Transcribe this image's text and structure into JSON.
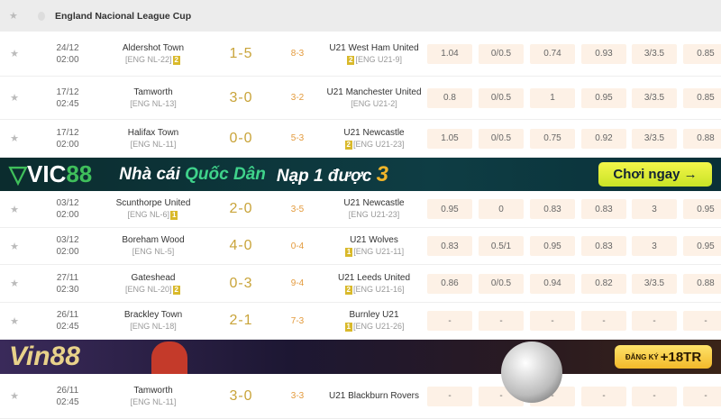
{
  "league": {
    "title": "England Nacional League Cup"
  },
  "matches": [
    {
      "date": "24/12",
      "time": "02:00",
      "home": "Aldershot Town",
      "home_rank": "[ENG NL-22]",
      "home_badge": "2",
      "score": "1-5",
      "ht": "8-3",
      "away": "U21 West Ham United",
      "away_rank": "[ENG U21-9]",
      "away_badge": "2",
      "odds": [
        "1.04",
        "0/0.5",
        "0.74",
        "0.93",
        "3/3.5",
        "0.85"
      ]
    },
    {
      "date": "17/12",
      "time": "02:45",
      "home": "Tamworth",
      "home_rank": "[ENG NL-13]",
      "home_badge": "",
      "score": "3-0",
      "ht": "3-2",
      "away": "U21 Manchester United",
      "away_rank": "[ENG U21-2]",
      "away_badge": "",
      "odds": [
        "0.8",
        "0/0.5",
        "1",
        "0.95",
        "3/3.5",
        "0.85"
      ]
    },
    {
      "date": "17/12",
      "time": "02:00",
      "home": "Halifax Town",
      "home_rank": "[ENG NL-11]",
      "home_badge": "",
      "score": "0-0",
      "ht": "5-3",
      "away": "U21 Newcastle",
      "away_rank": "[ENG U21-23]",
      "away_badge": "2",
      "odds": [
        "1.05",
        "0/0.5",
        "0.75",
        "0.92",
        "3/3.5",
        "0.88"
      ]
    },
    {
      "date": "03/12",
      "time": "02:00",
      "home": "Scunthorpe United",
      "home_rank": "[ENG NL-6]",
      "home_badge": "1",
      "score": "2-0",
      "ht": "3-5",
      "away": "U21 Newcastle",
      "away_rank": "[ENG U21-23]",
      "away_badge": "",
      "odds": [
        "0.95",
        "0",
        "0.83",
        "0.83",
        "3",
        "0.95"
      ]
    },
    {
      "date": "03/12",
      "time": "02:00",
      "home": "Boreham Wood",
      "home_rank": "[ENG NL-5]",
      "home_badge": "",
      "score": "4-0",
      "ht": "0-4",
      "away": "U21 Wolves",
      "away_rank": "[ENG U21-11]",
      "away_badge": "1",
      "odds": [
        "0.83",
        "0.5/1",
        "0.95",
        "0.83",
        "3",
        "0.95"
      ]
    },
    {
      "date": "27/11",
      "time": "02:30",
      "home": "Gateshead",
      "home_rank": "[ENG NL-20]",
      "home_badge": "2",
      "score": "0-3",
      "ht": "9-4",
      "away": "U21 Leeds United",
      "away_rank": "[ENG U21-16]",
      "away_badge": "2",
      "odds": [
        "0.86",
        "0/0.5",
        "0.94",
        "0.82",
        "3/3.5",
        "0.88"
      ]
    },
    {
      "date": "26/11",
      "time": "02:45",
      "home": "Brackley Town",
      "home_rank": "[ENG NL-18]",
      "home_badge": "",
      "score": "2-1",
      "ht": "7-3",
      "away": "Burnley U21",
      "away_rank": "[ENG U21-26]",
      "away_badge": "1",
      "odds": [
        "-",
        "-",
        "-",
        "-",
        "-",
        "-"
      ]
    },
    {
      "date": "26/11",
      "time": "02:45",
      "home": "Tamworth",
      "home_rank": "[ENG NL-11]",
      "home_badge": "",
      "score": "3-0",
      "ht": "3-3",
      "away": "U21 Blackburn Rovers",
      "away_rank": "",
      "away_badge": "",
      "odds": [
        "-",
        "-",
        "-",
        "-",
        "-",
        "-"
      ]
    }
  ],
  "banner_vic": {
    "logo_a": "VIC",
    "logo_b": "88",
    "t1a": "Nhà cái ",
    "t1b": "Quốc Dân",
    "t2a": "Nạp 1 được ",
    "t2b": "3",
    "cta": "Chơi ngay →"
  },
  "banner_vin": {
    "logo": "Vin88",
    "cta_small": "ĐĂNG KÝ",
    "cta": "+18TR"
  },
  "colors": {
    "score": "#c9a43a",
    "ht": "#e39a3c",
    "badge": "#d9b92b",
    "odds_bg": "#fdf1e6"
  }
}
